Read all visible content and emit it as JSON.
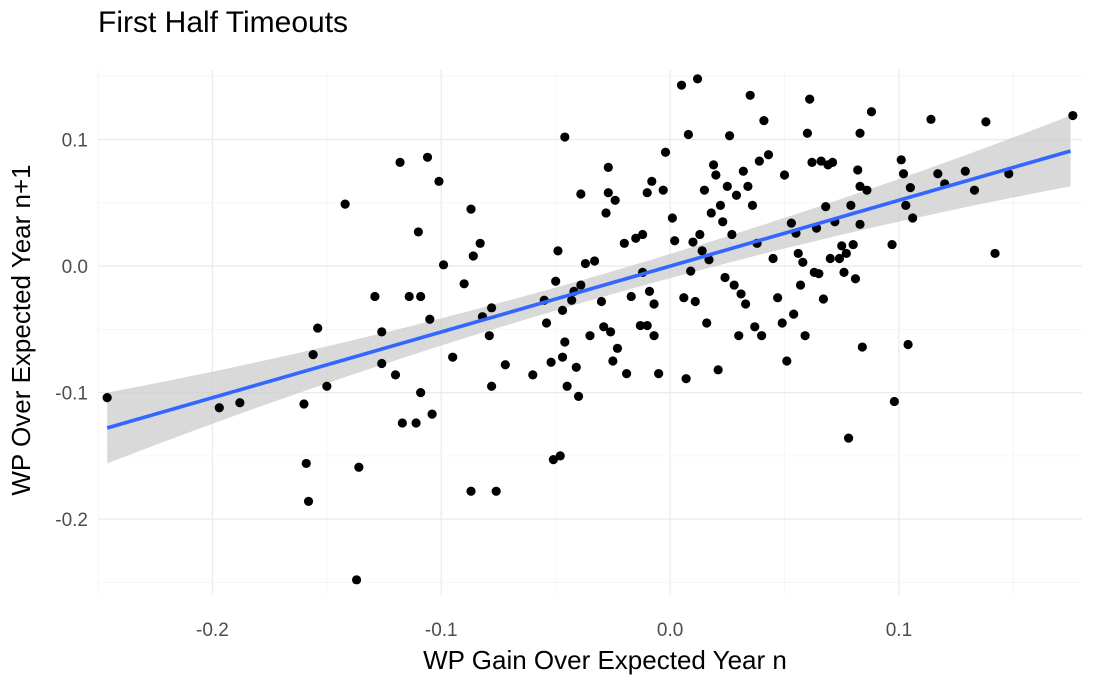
{
  "chart_data": {
    "type": "scatter",
    "title": "First Half Timeouts",
    "xlabel": "WP Gain Over Expected Year n",
    "ylabel": "WP Over Expected Year n+1",
    "xlim": [
      -0.25,
      0.18
    ],
    "ylim": [
      -0.26,
      0.155
    ],
    "x_ticks": [
      -0.2,
      -0.1,
      0.0,
      0.1
    ],
    "x_tick_labels": [
      "-0.2",
      "-0.1",
      "0.0",
      "0.1"
    ],
    "y_ticks": [
      -0.2,
      -0.1,
      0.0,
      0.1
    ],
    "y_tick_labels": [
      "-0.2",
      "-0.1",
      "0.0",
      "0.1"
    ],
    "grid": true,
    "colors": {
      "points": "#000000",
      "fit_line": "#3366ff",
      "band": "#cccccc"
    },
    "fit": {
      "method": "linear",
      "x": [
        -0.246,
        0.175
      ],
      "y": [
        -0.128,
        0.091
      ],
      "ci_halfwidth_ends": 0.028,
      "ci_halfwidth_center": 0.009
    },
    "points": [
      [
        -0.246,
        -0.104
      ],
      [
        -0.197,
        -0.112
      ],
      [
        -0.188,
        -0.108
      ],
      [
        -0.16,
        -0.109
      ],
      [
        -0.159,
        -0.156
      ],
      [
        -0.158,
        -0.186
      ],
      [
        -0.156,
        -0.07
      ],
      [
        -0.154,
        -0.049
      ],
      [
        -0.15,
        -0.095
      ],
      [
        -0.142,
        0.049
      ],
      [
        -0.137,
        -0.248
      ],
      [
        -0.136,
        -0.159
      ],
      [
        -0.129,
        -0.024
      ],
      [
        -0.126,
        -0.052
      ],
      [
        -0.126,
        -0.077
      ],
      [
        -0.12,
        -0.086
      ],
      [
        -0.118,
        0.082
      ],
      [
        -0.117,
        -0.124
      ],
      [
        -0.114,
        -0.024
      ],
      [
        -0.111,
        -0.124
      ],
      [
        -0.11,
        0.027
      ],
      [
        -0.109,
        -0.1
      ],
      [
        -0.109,
        -0.024
      ],
      [
        -0.106,
        0.086
      ],
      [
        -0.105,
        -0.042
      ],
      [
        -0.104,
        -0.117
      ],
      [
        -0.101,
        0.067
      ],
      [
        -0.099,
        0.001
      ],
      [
        -0.095,
        -0.072
      ],
      [
        -0.09,
        -0.014
      ],
      [
        -0.087,
        0.045
      ],
      [
        -0.087,
        -0.178
      ],
      [
        -0.086,
        0.008
      ],
      [
        -0.083,
        0.018
      ],
      [
        -0.082,
        -0.04
      ],
      [
        -0.079,
        -0.055
      ],
      [
        -0.078,
        -0.033
      ],
      [
        -0.078,
        -0.095
      ],
      [
        -0.076,
        -0.178
      ],
      [
        -0.072,
        -0.078
      ],
      [
        -0.06,
        -0.086
      ],
      [
        -0.055,
        -0.027
      ],
      [
        -0.054,
        -0.045
      ],
      [
        -0.052,
        -0.076
      ],
      [
        -0.051,
        -0.153
      ],
      [
        -0.05,
        -0.012
      ],
      [
        -0.049,
        0.012
      ],
      [
        -0.048,
        -0.15
      ],
      [
        -0.047,
        -0.035
      ],
      [
        -0.047,
        -0.072
      ],
      [
        -0.046,
        0.102
      ],
      [
        -0.046,
        -0.06
      ],
      [
        -0.045,
        -0.095
      ],
      [
        -0.043,
        -0.027
      ],
      [
        -0.042,
        -0.02
      ],
      [
        -0.041,
        -0.08
      ],
      [
        -0.04,
        -0.103
      ],
      [
        -0.039,
        -0.015
      ],
      [
        -0.039,
        0.057
      ],
      [
        -0.037,
        0.002
      ],
      [
        -0.035,
        -0.055
      ],
      [
        -0.033,
        0.004
      ],
      [
        -0.03,
        -0.028
      ],
      [
        -0.029,
        -0.048
      ],
      [
        -0.028,
        0.042
      ],
      [
        -0.027,
        0.078
      ],
      [
        -0.027,
        0.058
      ],
      [
        -0.026,
        -0.052
      ],
      [
        -0.025,
        -0.075
      ],
      [
        -0.024,
        0.052
      ],
      [
        -0.023,
        -0.065
      ],
      [
        -0.02,
        0.018
      ],
      [
        -0.019,
        -0.085
      ],
      [
        -0.017,
        -0.024
      ],
      [
        -0.015,
        0.022
      ],
      [
        -0.013,
        -0.047
      ],
      [
        -0.012,
        0.025
      ],
      [
        -0.012,
        -0.005
      ],
      [
        -0.01,
        0.058
      ],
      [
        -0.01,
        -0.047
      ],
      [
        -0.009,
        -0.02
      ],
      [
        -0.008,
        0.067
      ],
      [
        -0.007,
        -0.03
      ],
      [
        -0.007,
        -0.055
      ],
      [
        -0.005,
        -0.085
      ],
      [
        -0.003,
        0.06
      ],
      [
        -0.002,
        0.09
      ],
      [
        0.001,
        0.038
      ],
      [
        0.002,
        0.02
      ],
      [
        0.005,
        0.143
      ],
      [
        0.006,
        -0.025
      ],
      [
        0.007,
        -0.089
      ],
      [
        0.008,
        0.104
      ],
      [
        0.009,
        -0.004
      ],
      [
        0.01,
        0.019
      ],
      [
        0.011,
        -0.028
      ],
      [
        0.012,
        0.148
      ],
      [
        0.013,
        0.025
      ],
      [
        0.014,
        0.012
      ],
      [
        0.015,
        0.06
      ],
      [
        0.016,
        -0.045
      ],
      [
        0.017,
        0.005
      ],
      [
        0.018,
        0.042
      ],
      [
        0.019,
        0.08
      ],
      [
        0.02,
        0.072
      ],
      [
        0.021,
        -0.082
      ],
      [
        0.022,
        0.048
      ],
      [
        0.023,
        0.035
      ],
      [
        0.024,
        -0.009
      ],
      [
        0.025,
        0.063
      ],
      [
        0.026,
        0.103
      ],
      [
        0.027,
        0.025
      ],
      [
        0.028,
        -0.015
      ],
      [
        0.029,
        0.056
      ],
      [
        0.03,
        -0.055
      ],
      [
        0.031,
        -0.022
      ],
      [
        0.032,
        0.075
      ],
      [
        0.033,
        -0.03
      ],
      [
        0.034,
        0.063
      ],
      [
        0.035,
        0.135
      ],
      [
        0.036,
        0.048
      ],
      [
        0.037,
        -0.048
      ],
      [
        0.038,
        0.018
      ],
      [
        0.039,
        0.083
      ],
      [
        0.04,
        -0.055
      ],
      [
        0.041,
        0.115
      ],
      [
        0.043,
        0.088
      ],
      [
        0.045,
        0.006
      ],
      [
        0.047,
        -0.025
      ],
      [
        0.049,
        -0.045
      ],
      [
        0.05,
        0.072
      ],
      [
        0.051,
        -0.075
      ],
      [
        0.053,
        0.034
      ],
      [
        0.054,
        -0.038
      ],
      [
        0.055,
        0.026
      ],
      [
        0.056,
        0.01
      ],
      [
        0.057,
        -0.015
      ],
      [
        0.058,
        0.003
      ],
      [
        0.059,
        -0.055
      ],
      [
        0.06,
        0.105
      ],
      [
        0.061,
        0.132
      ],
      [
        0.062,
        0.082
      ],
      [
        0.063,
        -0.005
      ],
      [
        0.064,
        0.03
      ],
      [
        0.065,
        -0.006
      ],
      [
        0.066,
        0.083
      ],
      [
        0.067,
        -0.026
      ],
      [
        0.068,
        0.047
      ],
      [
        0.069,
        0.08
      ],
      [
        0.07,
        0.006
      ],
      [
        0.071,
        0.082
      ],
      [
        0.072,
        0.035
      ],
      [
        0.074,
        0.006
      ],
      [
        0.075,
        0.016
      ],
      [
        0.076,
        -0.005
      ],
      [
        0.077,
        0.01
      ],
      [
        0.078,
        -0.136
      ],
      [
        0.079,
        0.048
      ],
      [
        0.08,
        0.017
      ],
      [
        0.081,
        -0.01
      ],
      [
        0.082,
        0.076
      ],
      [
        0.083,
        0.063
      ],
      [
        0.084,
        -0.064
      ],
      [
        0.086,
        0.06
      ],
      [
        0.088,
        0.122
      ],
      [
        0.097,
        0.017
      ],
      [
        0.098,
        -0.107
      ],
      [
        0.101,
        0.084
      ],
      [
        0.102,
        0.073
      ],
      [
        0.103,
        0.048
      ],
      [
        0.104,
        -0.062
      ],
      [
        0.105,
        0.062
      ],
      [
        0.106,
        0.038
      ],
      [
        0.114,
        0.116
      ],
      [
        0.117,
        0.073
      ],
      [
        0.12,
        0.065
      ],
      [
        0.129,
        0.075
      ],
      [
        0.133,
        0.06
      ],
      [
        0.138,
        0.114
      ],
      [
        0.142,
        0.01
      ],
      [
        0.148,
        0.073
      ],
      [
        0.176,
        0.119
      ],
      [
        0.083,
        0.105
      ],
      [
        0.083,
        0.033
      ]
    ]
  }
}
